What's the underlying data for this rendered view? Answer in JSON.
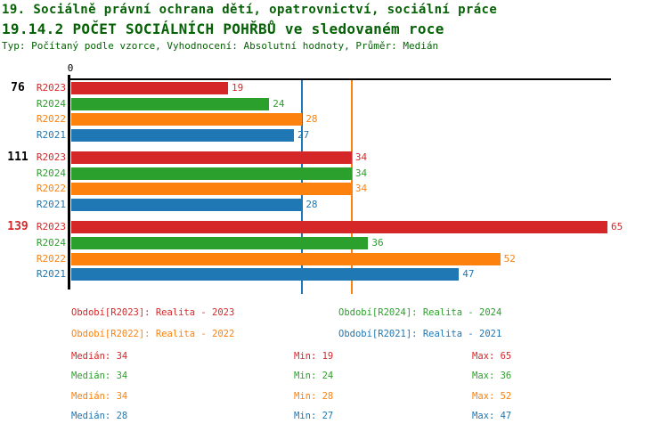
{
  "header": {
    "line1": "19. Sociálně právní ochrana dětí, opatrovnictví, sociální práce",
    "line2": "19.14.2 POČET SOCIÁLNÍCH POHŘBŮ ve sledovaném roce",
    "line3": "Typ: Počítaný podle vzorce, Vyhodnocení: Absolutní hodnoty, Průměr: Medián",
    "color": "#066106"
  },
  "chart_data": {
    "type": "bar",
    "orientation": "horizontal",
    "title": "19.14.2 POČET SOCIÁLNÍCH POHŘBŮ ve sledovaném roce",
    "categories": [
      "76",
      "111",
      "139"
    ],
    "category_label_colors": [
      "#000000",
      "#000000",
      "#d62728"
    ],
    "series": [
      {
        "name": "R2023",
        "color": "#d62728",
        "values": [
          19,
          34,
          65
        ]
      },
      {
        "name": "R2024",
        "color": "#2ca02c",
        "values": [
          24,
          34,
          36
        ]
      },
      {
        "name": "R2022",
        "color": "#fd810d",
        "values": [
          28,
          34,
          52
        ]
      },
      {
        "name": "R2021",
        "color": "#1f77b4",
        "values": [
          27,
          28,
          47
        ]
      }
    ],
    "value_axis": {
      "origin_label": "0",
      "min": 0,
      "max": 65
    },
    "reference_lines": [
      {
        "value": 34,
        "color": "#fd810d",
        "meaning": "median R2022"
      },
      {
        "value": 28,
        "color": "#1f77b4",
        "meaning": "median R2021"
      }
    ],
    "bar_value_labels": true,
    "grid": false,
    "axis_color": "#000000"
  },
  "legend": {
    "items": [
      {
        "text": "Období[R2023]: Realita - 2023",
        "color": "#d62728"
      },
      {
        "text": "Období[R2024]: Realita - 2024",
        "color": "#2ca02c"
      },
      {
        "text": "Období[R2022]: Realita - 2022",
        "color": "#fd810d"
      },
      {
        "text": "Období[R2021]: Realita - 2021",
        "color": "#1f77b4"
      }
    ]
  },
  "stats": {
    "labels": {
      "median": "Medián",
      "min": "Min",
      "max": "Max"
    },
    "rows": [
      {
        "series": "R2023",
        "color": "#d62728",
        "median": 34,
        "min": 19,
        "max": 65
      },
      {
        "series": "R2024",
        "color": "#2ca02c",
        "median": 34,
        "min": 24,
        "max": 36
      },
      {
        "series": "R2022",
        "color": "#fd810d",
        "median": 34,
        "min": 28,
        "max": 52
      },
      {
        "series": "R2021",
        "color": "#1f77b4",
        "median": 28,
        "min": 27,
        "max": 47
      }
    ]
  }
}
